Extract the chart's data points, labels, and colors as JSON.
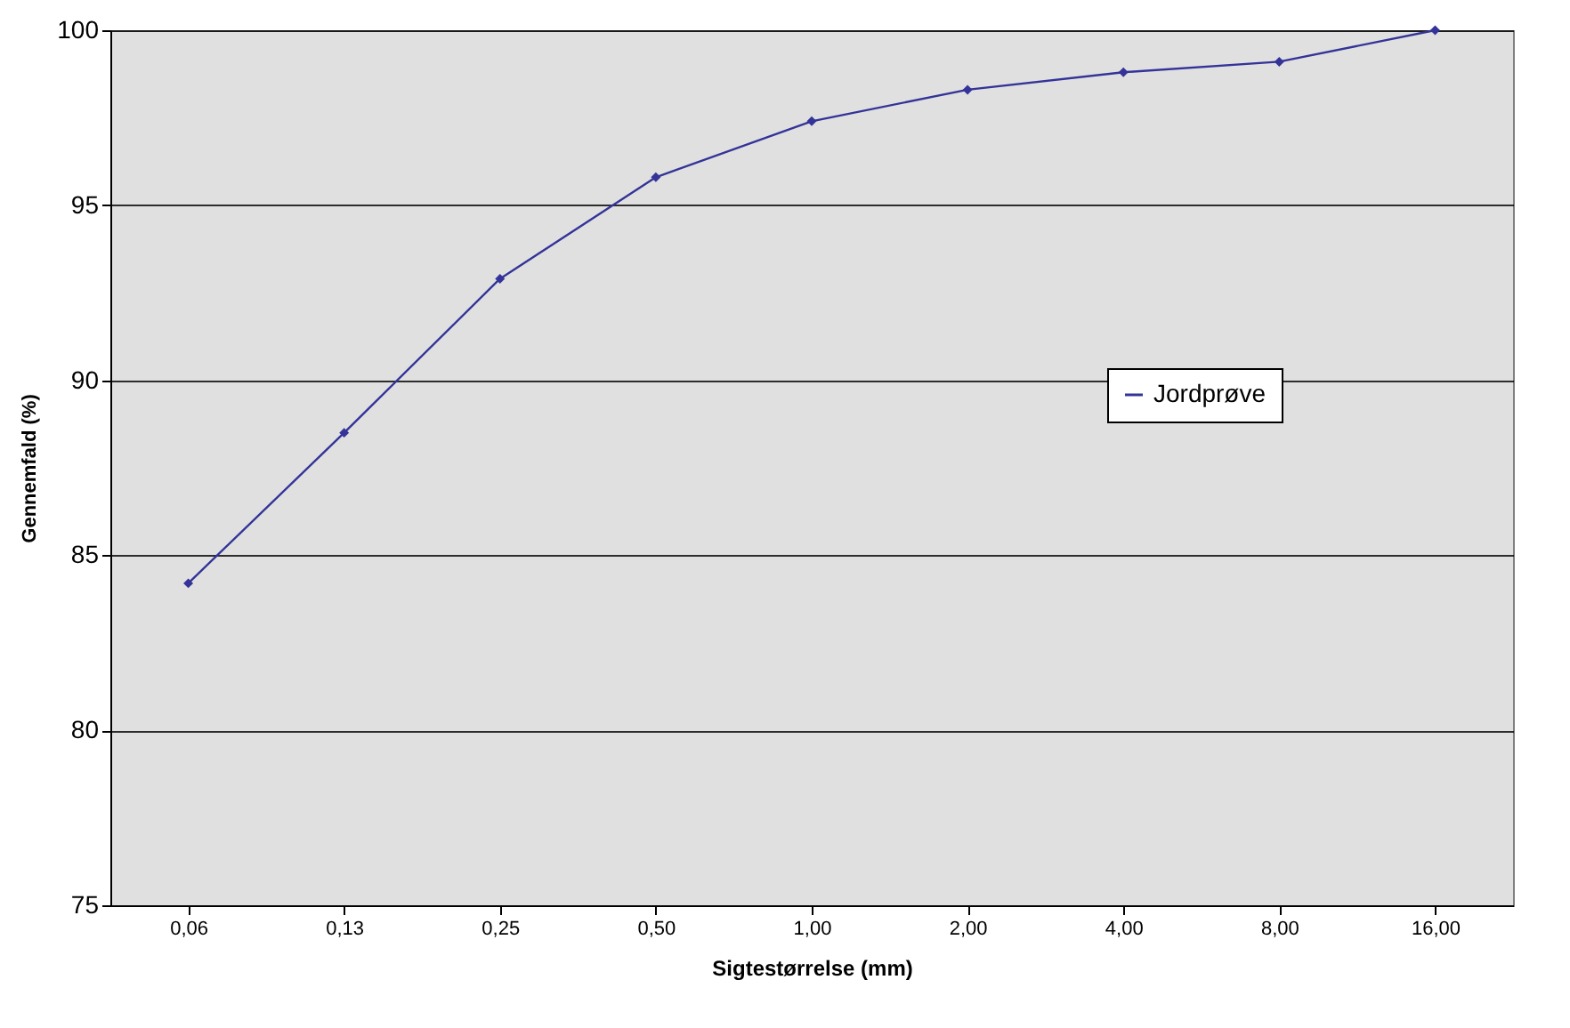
{
  "chart_data": {
    "type": "line",
    "xlabel": "Sigtestørrelse (mm)",
    "ylabel": "Gennemfald (%)",
    "categories": [
      "0,06",
      "0,13",
      "0,25",
      "0,50",
      "1,00",
      "2,00",
      "4,00",
      "8,00",
      "16,00"
    ],
    "series": [
      {
        "name": "Jordprøve",
        "color": "#333399",
        "values": [
          84.2,
          88.5,
          92.9,
          95.8,
          97.4,
          98.3,
          98.8,
          99.1,
          100
        ]
      }
    ],
    "ylim": [
      75,
      100
    ],
    "yticks": [
      75,
      80,
      85,
      90,
      95,
      100
    ],
    "grid": "y",
    "legend": "right",
    "marker": "diamond",
    "line_style": "solid"
  }
}
